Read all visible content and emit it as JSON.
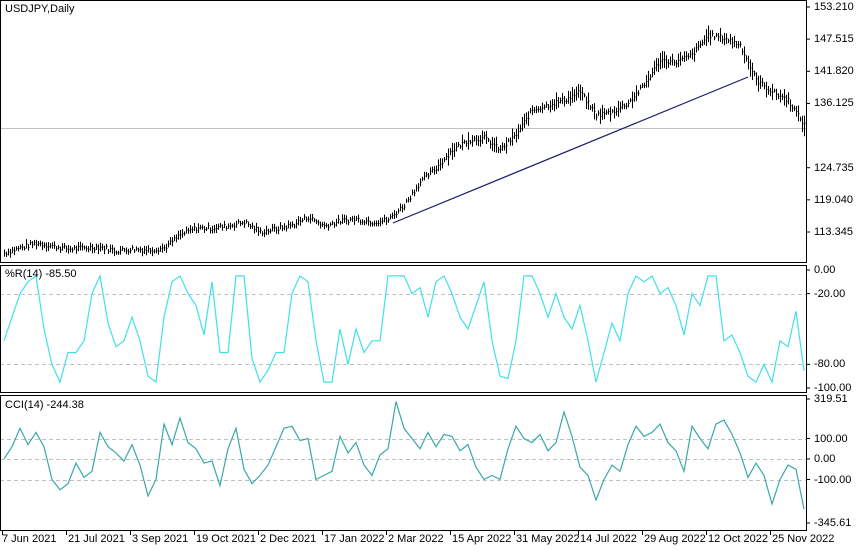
{
  "symbol_label": "USDJPY,Daily",
  "wpr_label": "%R(14) -85.50",
  "cci_label": "CCI(14) -244.38",
  "colors": {
    "bars": "#000000",
    "trendline": "#1a1a6e",
    "wpr": "#40e0e8",
    "cci": "#3aa8a8",
    "grid_dash": "#c0c0c0",
    "price_line": "#c0c0c0"
  },
  "chart_data": {
    "type": "ohlc-bar",
    "price": {
      "yticks": [
        "153.210",
        "147.515",
        "141.820",
        "136.125",
        "124.735",
        "119.040",
        "113.345"
      ],
      "ytick_values": [
        153.21,
        147.515,
        141.82,
        136.125,
        124.735,
        119.04,
        113.345
      ],
      "ylim": [
        108.5,
        153.21
      ],
      "current_price_line": 131.77,
      "close_samples_every_8_bars": [
        109.62,
        110.51,
        111.4,
        110.86,
        110.33,
        110.51,
        110.69,
        109.98,
        110.33,
        110.16,
        110.51,
        112.81,
        114.05,
        114.05,
        114.41,
        115.12,
        113.34,
        113.88,
        114.58,
        116.0,
        114.41,
        115.29,
        115.65,
        115.12,
        115.47,
        118.13,
        122.2,
        124.68,
        127.87,
        129.65,
        130.0,
        127.87,
        130.53,
        134.96,
        135.85,
        136.73,
        138.15,
        134.07,
        134.61,
        136.2,
        139.39,
        143.82,
        143.47,
        144.71,
        148.25,
        147.72,
        146.48,
        140.28,
        138.15,
        136.73,
        132.3
      ],
      "trendline": {
        "from": [
          "2 Mar 2022",
          114.8
        ],
        "to": [
          "12 Oct 2022",
          140.6
        ]
      }
    },
    "wpr": {
      "name": "%R(14)",
      "last": -85.5,
      "ylim": [
        -100,
        0
      ],
      "yticks": [
        "0.00",
        "-20.00",
        "-80.00",
        "-100.00"
      ],
      "levels": [
        -20,
        -80
      ],
      "values": [
        -60,
        -40,
        -20,
        -10,
        -5,
        -50,
        -80,
        -95,
        -70,
        -70,
        -60,
        -20,
        -5,
        -45,
        -65,
        -60,
        -40,
        -60,
        -90,
        -95,
        -40,
        -10,
        -5,
        -20,
        -30,
        -55,
        -10,
        -70,
        -70,
        -5,
        -5,
        -75,
        -95,
        -85,
        -70,
        -70,
        -20,
        -5,
        -10,
        -60,
        -95,
        -95,
        -50,
        -80,
        -50,
        -70,
        -60,
        -60,
        -5,
        -5,
        -5,
        -20,
        -15,
        -40,
        -10,
        -5,
        -20,
        -40,
        -50,
        -30,
        -10,
        -60,
        -90,
        -92,
        -60,
        -5,
        -5,
        -20,
        -40,
        -20,
        -40,
        -50,
        -30,
        -60,
        -95,
        -70,
        -45,
        -60,
        -20,
        -5,
        -10,
        -5,
        -20,
        -15,
        -30,
        -55,
        -20,
        -30,
        -5,
        -5,
        -60,
        -55,
        -70,
        -90,
        -95,
        -80,
        -95,
        -60,
        -65,
        -35,
        -85.5
      ]
    },
    "cci": {
      "name": "CCI(14)",
      "last": -244.38,
      "ylim": [
        -345.61,
        319.51
      ],
      "yticks": [
        "319.51",
        "100.00",
        "0.00",
        "-100.00",
        "-345.61"
      ],
      "levels": [
        100,
        0,
        -100
      ],
      "values": [
        0,
        60,
        150,
        70,
        130,
        60,
        -100,
        -150,
        -120,
        -20,
        -90,
        -60,
        130,
        60,
        30,
        -10,
        70,
        -30,
        -180,
        -100,
        170,
        70,
        200,
        80,
        50,
        -20,
        -10,
        -130,
        50,
        150,
        -50,
        -120,
        -80,
        -30,
        60,
        150,
        160,
        90,
        100,
        -100,
        -80,
        -60,
        110,
        30,
        80,
        -30,
        -80,
        20,
        50,
        280,
        150,
        100,
        50,
        130,
        60,
        120,
        110,
        40,
        70,
        -40,
        -100,
        -80,
        -100,
        50,
        160,
        100,
        80,
        120,
        40,
        80,
        230,
        110,
        -40,
        -80,
        -200,
        -100,
        -30,
        -60,
        70,
        160,
        110,
        130,
        170,
        80,
        40,
        -60,
        160,
        100,
        50,
        170,
        190,
        120,
        30,
        -90,
        -20,
        -80,
        -220,
        -100,
        -30,
        -50,
        -244.38
      ]
    },
    "xticks": [
      "7 Jun 2021",
      "21 Jul 2021",
      "3 Sep 2021",
      "19 Oct 2021",
      "2 Dec 2021",
      "17 Jan 2022",
      "2 Mar 2022",
      "15 Apr 2022",
      "31 May 2022",
      "14 Jul 2022",
      "29 Aug 2022",
      "12 Oct 2022",
      "25 Nov 2022"
    ]
  }
}
